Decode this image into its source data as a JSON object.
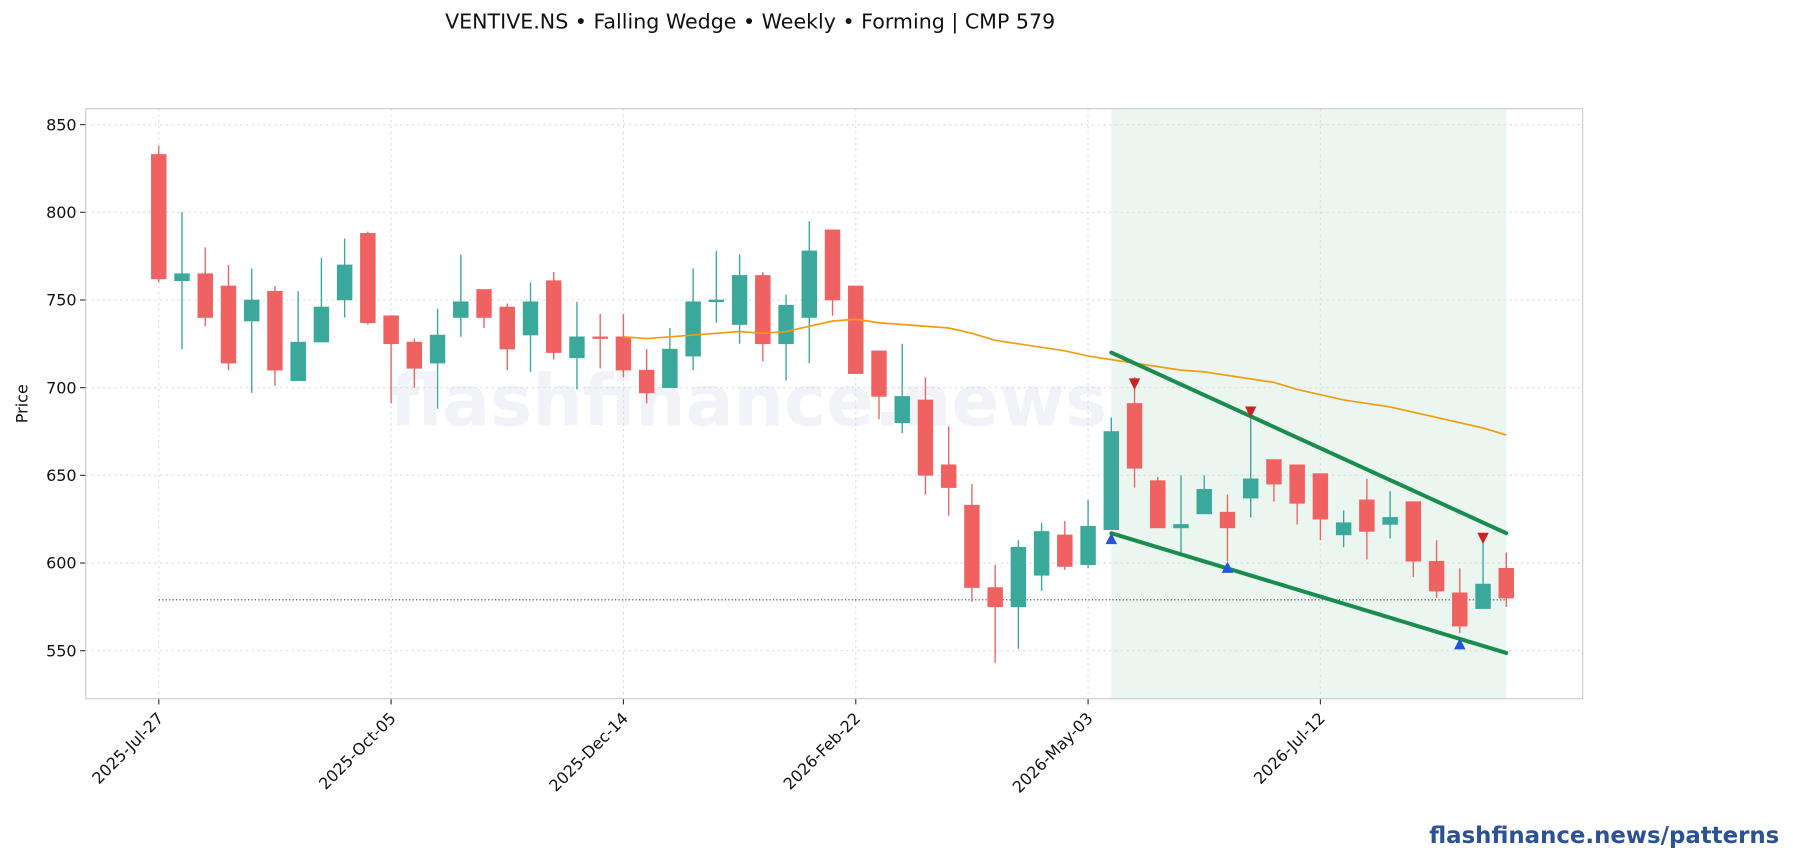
{
  "title": "VENTIVE.NS  •  Falling Wedge  •  Weekly  •  Forming  |  CMP 579",
  "footer": "flashfinance.news/patterns",
  "chart_data": {
    "type": "candlestick",
    "watermark": "flashfinance.news",
    "ylabel": "Price",
    "x": [
      "2025-Jul-27",
      "2025-Aug-03",
      "2025-Aug-10",
      "2025-Aug-17",
      "2025-Aug-24",
      "2025-Aug-31",
      "2025-Sep-07",
      "2025-Sep-14",
      "2025-Sep-21",
      "2025-Sep-28",
      "2025-Oct-05",
      "2025-Oct-12",
      "2025-Oct-19",
      "2025-Oct-26",
      "2025-Nov-02",
      "2025-Nov-09",
      "2025-Nov-16",
      "2025-Nov-23",
      "2025-Nov-30",
      "2025-Dec-07",
      "2025-Dec-14",
      "2025-Dec-21",
      "2025-Dec-28",
      "2026-Jan-04",
      "2026-Jan-11",
      "2026-Jan-18",
      "2026-Jan-25",
      "2026-Feb-01",
      "2026-Feb-08",
      "2026-Feb-15",
      "2026-Feb-22",
      "2026-Mar-01",
      "2026-Mar-08",
      "2026-Mar-15",
      "2026-Mar-22",
      "2026-Mar-29",
      "2026-Apr-05",
      "2026-Apr-12",
      "2026-Apr-19",
      "2026-Apr-26",
      "2026-May-03",
      "2026-May-10",
      "2026-May-17",
      "2026-May-24",
      "2026-May-31",
      "2026-Jun-07",
      "2026-Jun-14",
      "2026-Jun-21",
      "2026-Jun-28",
      "2026-Jul-05",
      "2026-Jul-12",
      "2026-Jul-19",
      "2026-Jul-26",
      "2026-Aug-02",
      "2026-Aug-09",
      "2026-Aug-16",
      "2026-Aug-23",
      "2026-Aug-30",
      "2026-Sep-06"
    ],
    "open": [
      833,
      761,
      765,
      758,
      738,
      755,
      704,
      726,
      750,
      788,
      741,
      726,
      714,
      740,
      756,
      746,
      730,
      761,
      717,
      729,
      729,
      710,
      700,
      718,
      749,
      736,
      764,
      725,
      740,
      790,
      758,
      721,
      680,
      693,
      656,
      633,
      586,
      575,
      593,
      616,
      599,
      619,
      691,
      647,
      620,
      628,
      629,
      637,
      659,
      656,
      651,
      616,
      636,
      622,
      635,
      601,
      583,
      574,
      597
    ],
    "high": [
      838,
      800,
      780,
      770,
      768,
      758,
      755,
      774,
      785,
      789,
      741,
      728,
      745,
      776,
      756,
      748,
      760,
      766,
      749,
      742,
      742,
      722,
      734,
      768,
      778,
      776,
      766,
      753,
      795,
      790,
      758,
      721,
      725,
      706,
      678,
      645,
      599,
      613,
      623,
      624,
      636,
      683,
      706,
      649,
      650,
      650,
      639,
      684,
      659,
      656,
      651,
      630,
      648,
      641,
      635,
      613,
      597,
      612,
      606
    ],
    "low": [
      760,
      722,
      735,
      710,
      697,
      701,
      704,
      726,
      740,
      736,
      691,
      700,
      688,
      729,
      734,
      710,
      709,
      716,
      699,
      711,
      706,
      691,
      700,
      710,
      737,
      725,
      715,
      704,
      714,
      741,
      708,
      682,
      674,
      639,
      627,
      578,
      543,
      551,
      584,
      596,
      597,
      619,
      643,
      620,
      606,
      628,
      601,
      626,
      635,
      622,
      613,
      609,
      602,
      614,
      592,
      580,
      560,
      574,
      575
    ],
    "close": [
      762,
      765,
      740,
      714,
      750,
      710,
      726,
      746,
      770,
      737,
      725,
      711,
      730,
      749,
      740,
      722,
      749,
      720,
      729,
      728,
      710,
      697,
      722,
      749,
      750,
      764,
      725,
      747,
      778,
      750,
      708,
      695,
      695,
      650,
      643,
      586,
      575,
      609,
      618,
      598,
      621,
      675,
      654,
      620,
      622,
      642,
      620,
      648,
      645,
      634,
      625,
      623,
      618,
      626,
      601,
      584,
      564,
      588,
      580
    ],
    "up_color": "#3aa99b",
    "down_color": "#f06262",
    "ma": {
      "color": "#f39c12",
      "values": [
        null,
        null,
        null,
        null,
        null,
        null,
        null,
        null,
        null,
        null,
        null,
        null,
        null,
        null,
        null,
        null,
        null,
        null,
        null,
        null,
        729,
        728,
        729,
        730,
        731,
        732,
        731,
        732,
        735,
        738,
        739,
        737,
        736,
        735,
        734,
        731,
        727,
        725,
        723,
        721,
        718,
        716,
        714,
        712,
        710,
        709,
        707,
        705,
        703,
        699,
        696,
        693,
        691,
        689,
        686,
        683,
        680,
        677,
        673
      ]
    },
    "pattern_zone": {
      "x": [
        "2026-May-10",
        "2026-Sep-06"
      ],
      "color": "#e6f4ec"
    },
    "wedge": {
      "color": "#1a8c4e",
      "upper": {
        "x": [
          "2026-May-10",
          "2026-Sep-06"
        ],
        "values": [
          720,
          617
        ]
      },
      "lower": {
        "x": [
          "2026-May-10",
          "2026-Sep-06"
        ],
        "values": [
          617,
          548.7
        ]
      }
    },
    "pivot_highs": {
      "color": "#cc2222",
      "x": [
        "2026-May-17",
        "2026-Jun-21",
        "2026-Aug-30"
      ],
      "values": [
        702,
        686,
        614
      ]
    },
    "pivot_lows": {
      "color": "#2255dd",
      "x": [
        "2026-May-10",
        "2026-Jun-14",
        "2026-Aug-23"
      ],
      "values": [
        614,
        597.6,
        554
      ]
    },
    "cmp": {
      "value": 579,
      "x": [
        "2025-Jul-27",
        "2026-Sep-06"
      ]
    },
    "xlim": [
      "2025-Jul-05",
      "2026-Sep-29"
    ],
    "xticks": [
      "2025-Jul-27",
      "2025-Oct-05",
      "2025-Dec-14",
      "2026-Feb-22",
      "2026-May-03",
      "2026-Jul-12"
    ],
    "ylim": [
      522.6,
      859.1
    ],
    "yticks": [
      550,
      600,
      650,
      700,
      750,
      800,
      850
    ],
    "grid": true
  }
}
